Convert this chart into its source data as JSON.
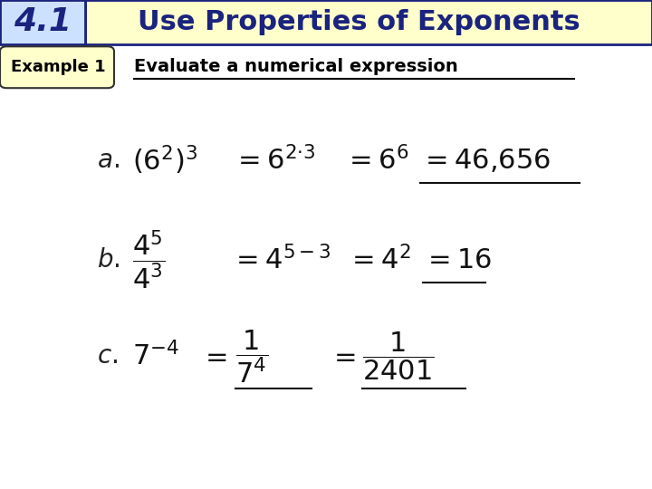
{
  "title_section": {
    "left_text": "4.1",
    "left_bg": "#cce0ff",
    "right_text": "Use Properties of Exponents",
    "right_bg": "#ffffcc",
    "border_color": "#1a237e",
    "text_color": "#1a237e"
  },
  "example_label": "Example 1",
  "example_label_bg": "#ffffcc",
  "example_label_border": "#333333",
  "subtitle": "Evaluate a numerical expression",
  "bg_color": "#ffffff",
  "content_color": "#000000",
  "figure_width": 7.2,
  "figure_height": 5.4,
  "dpi": 100
}
